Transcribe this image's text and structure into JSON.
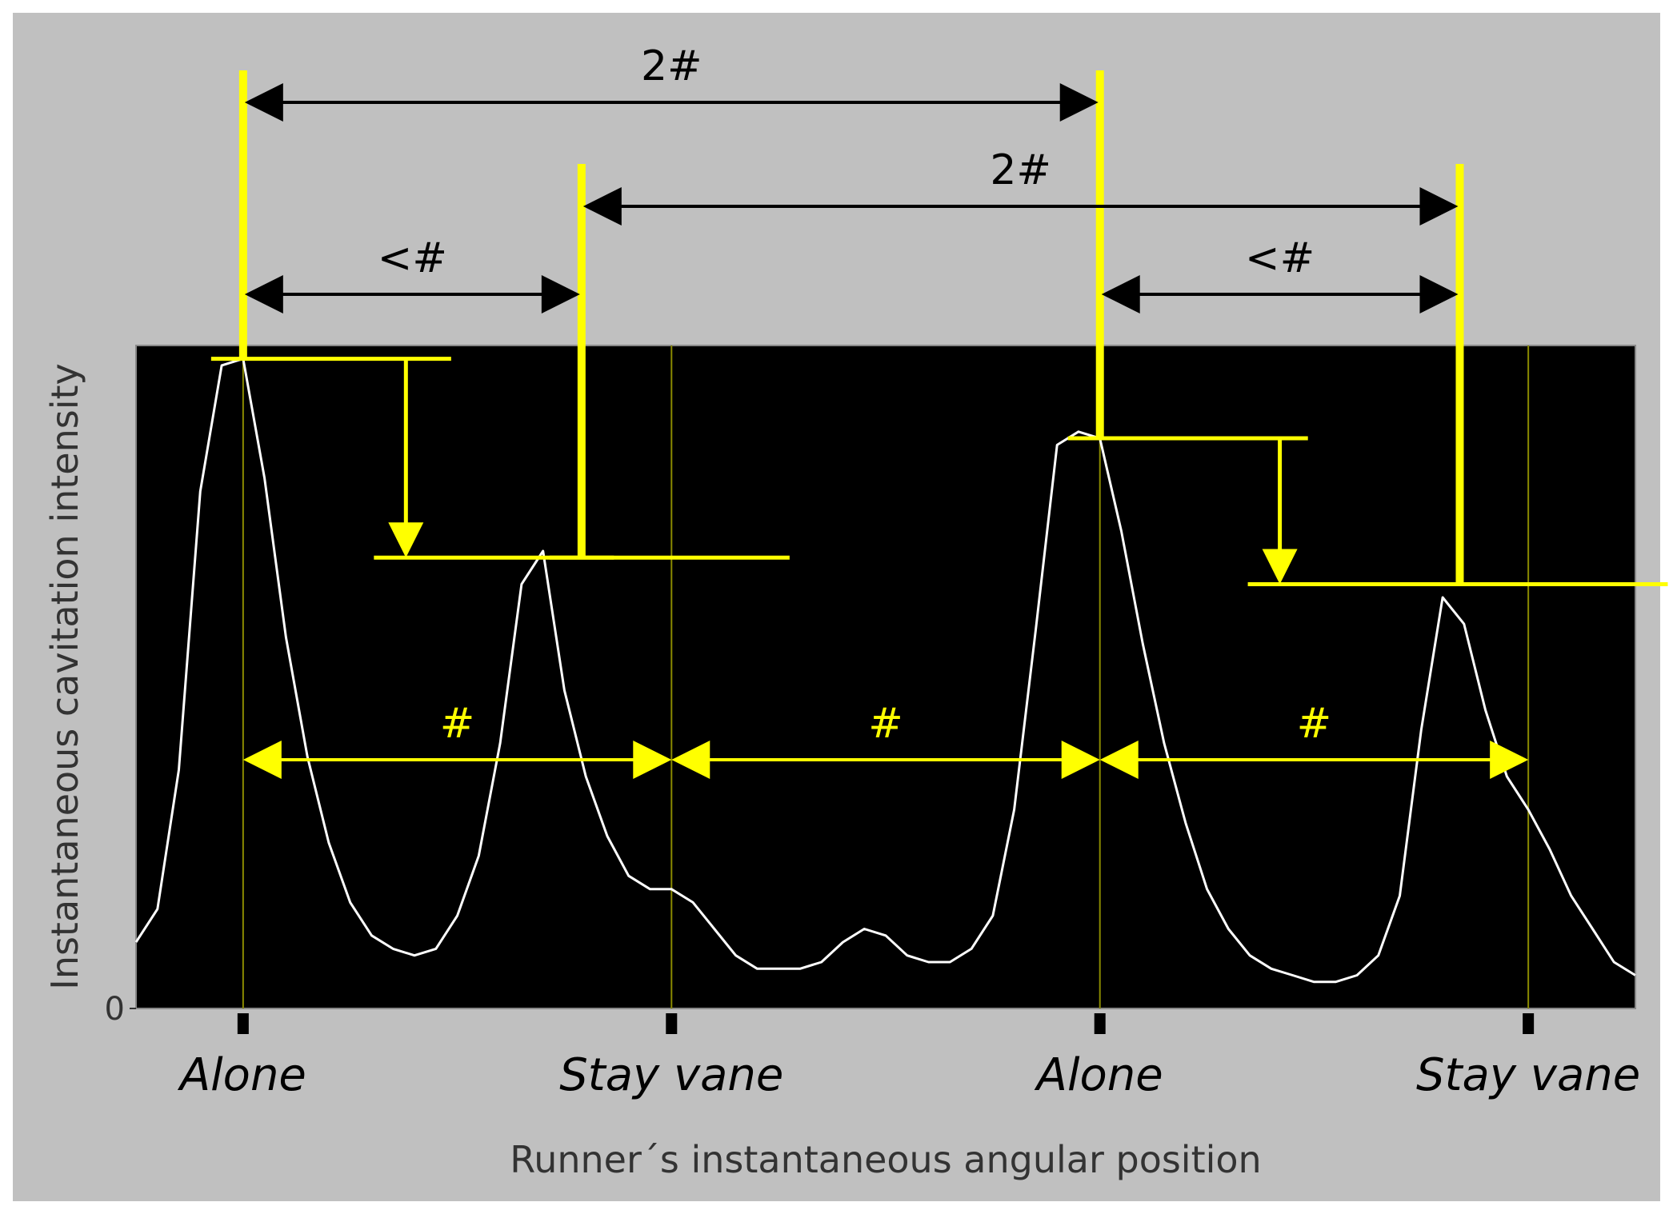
{
  "chart_data": {
    "type": "line",
    "title": "",
    "xlabel": "Runner´s instantaneous angular position",
    "ylabel": "Instantaneous cavitation intensity",
    "y_ticks": [
      {
        "value": 0,
        "label": "0"
      }
    ],
    "x_ticks": [
      {
        "value": 0.25,
        "label": "Alone"
      },
      {
        "value": 1.25,
        "label": "Stay vane"
      },
      {
        "value": 2.25,
        "label": "Alone"
      },
      {
        "value": 3.25,
        "label": "Stay vane"
      }
    ],
    "xlim": [
      0,
      3.5
    ],
    "ylim": [
      0,
      1.0
    ],
    "background": "#000000",
    "figure_background": "#c0c0c0",
    "series": [
      {
        "color": "#ffffff",
        "x": [
          0.0,
          0.05,
          0.1,
          0.15,
          0.2,
          0.25,
          0.3,
          0.35,
          0.4,
          0.45,
          0.5,
          0.55,
          0.6,
          0.65,
          0.7,
          0.75,
          0.8,
          0.85,
          0.9,
          0.95,
          1.0,
          1.05,
          1.1,
          1.15,
          1.2,
          1.25,
          1.3,
          1.35,
          1.4,
          1.45,
          1.5,
          1.55,
          1.6,
          1.65,
          1.7,
          1.75,
          1.8,
          1.85,
          1.9,
          1.95,
          2.0,
          2.05,
          2.1,
          2.15,
          2.2,
          2.25,
          2.3,
          2.35,
          2.4,
          2.45,
          2.5,
          2.55,
          2.6,
          2.65,
          2.7,
          2.75,
          2.8,
          2.85,
          2.9,
          2.95,
          3.0,
          3.05,
          3.1,
          3.15,
          3.2,
          3.25,
          3.3,
          3.35,
          3.4,
          3.45,
          3.5
        ],
        "y": [
          0.1,
          0.15,
          0.36,
          0.78,
          0.97,
          0.98,
          0.8,
          0.56,
          0.38,
          0.25,
          0.16,
          0.11,
          0.09,
          0.08,
          0.09,
          0.14,
          0.23,
          0.4,
          0.64,
          0.69,
          0.48,
          0.35,
          0.26,
          0.2,
          0.18,
          0.18,
          0.16,
          0.12,
          0.08,
          0.06,
          0.06,
          0.06,
          0.07,
          0.1,
          0.12,
          0.11,
          0.08,
          0.07,
          0.07,
          0.09,
          0.14,
          0.3,
          0.57,
          0.85,
          0.87,
          0.86,
          0.72,
          0.55,
          0.4,
          0.28,
          0.18,
          0.12,
          0.08,
          0.06,
          0.05,
          0.04,
          0.04,
          0.05,
          0.08,
          0.17,
          0.42,
          0.62,
          0.58,
          0.45,
          0.35,
          0.3,
          0.24,
          0.17,
          0.12,
          0.07,
          0.05
        ]
      }
    ],
    "vertical_markers": [
      0.25,
      1.25,
      2.25,
      3.25
    ],
    "annotations": {
      "spacing_label": "#",
      "short_label": "<#",
      "double_label": "2#",
      "peak_levels": [
        {
          "x": 0.25,
          "y": 0.98
        },
        {
          "x": 1.04,
          "y": 0.68
        },
        {
          "x": 2.25,
          "y": 0.86
        },
        {
          "x": 3.09,
          "y": 0.64
        }
      ],
      "pitch_arrows": [
        [
          0.25,
          1.25
        ],
        [
          1.25,
          2.25
        ],
        [
          2.25,
          3.25
        ]
      ],
      "short_arrows": [
        [
          0.25,
          1.04
        ],
        [
          2.25,
          3.09
        ]
      ],
      "double_arrows": [
        [
          0.25,
          2.25
        ],
        [
          1.04,
          3.09
        ]
      ],
      "drop_arrows": [
        {
          "from": 0.98,
          "to": 0.68,
          "x": 0.63
        },
        {
          "from": 0.86,
          "to": 0.64,
          "x": 2.67
        }
      ],
      "annotation_color": "#ffff00",
      "dimension_color": "#000000"
    }
  }
}
